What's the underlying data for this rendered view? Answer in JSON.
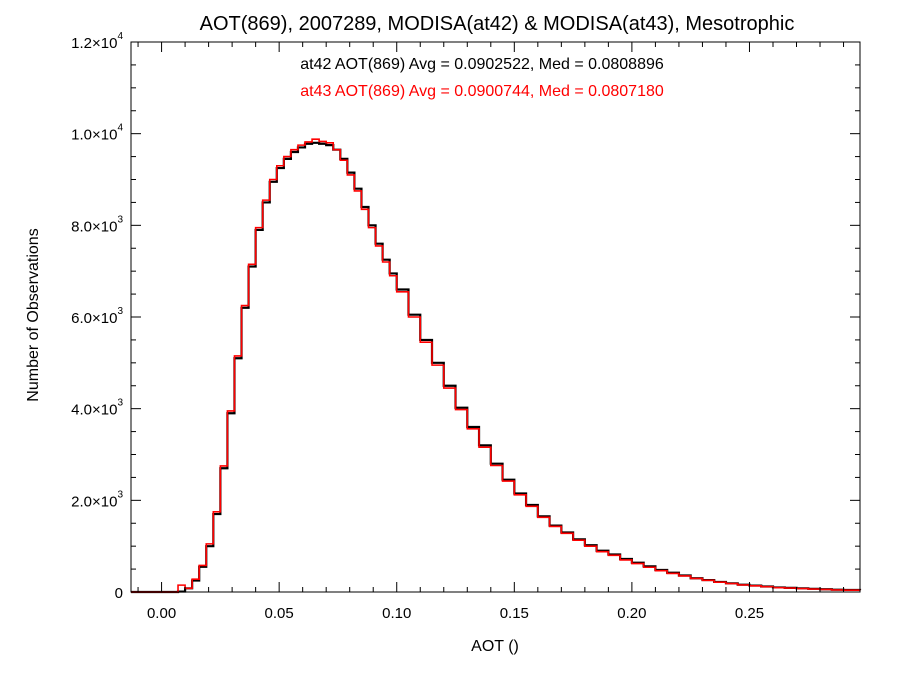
{
  "chart_data": {
    "type": "line",
    "title": "AOT(869), 2007289, MODISA(at42) & MODISA(at43), Mesotrophic",
    "xlabel": "AOT ()",
    "ylabel": "Number of Observations",
    "xlim": [
      -0.013,
      0.297
    ],
    "ylim": [
      0,
      12000
    ],
    "x_ticks": [
      0.0,
      0.05,
      0.1,
      0.15,
      0.2,
      0.25
    ],
    "x_tick_labels": [
      "0.00",
      "0.05",
      "0.10",
      "0.15",
      "0.20",
      "0.25"
    ],
    "y_ticks": [
      {
        "value": 0,
        "mantissa": "0",
        "exp": ""
      },
      {
        "value": 2000,
        "mantissa": "2.0×10",
        "exp": "3"
      },
      {
        "value": 4000,
        "mantissa": "4.0×10",
        "exp": "3"
      },
      {
        "value": 6000,
        "mantissa": "6.0×10",
        "exp": "3"
      },
      {
        "value": 8000,
        "mantissa": "8.0×10",
        "exp": "3"
      },
      {
        "value": 10000,
        "mantissa": "1.0×10",
        "exp": "4"
      },
      {
        "value": 12000,
        "mantissa": "1.2×10",
        "exp": "4"
      }
    ],
    "grid": false,
    "annotations": [
      {
        "text": "at42 AOT(869) Avg = 0.0902522, Med = 0.0808896",
        "color": "#000000"
      },
      {
        "text": "at43 AOT(869) Avg = 0.0900744, Med = 0.0807180",
        "color": "#ff0000"
      }
    ],
    "series": [
      {
        "color": "#000000",
        "x": [
          -0.013,
          0.0,
          0.004,
          0.007,
          0.01,
          0.013,
          0.016,
          0.019,
          0.022,
          0.025,
          0.028,
          0.031,
          0.034,
          0.037,
          0.04,
          0.043,
          0.046,
          0.049,
          0.052,
          0.055,
          0.058,
          0.061,
          0.064,
          0.067,
          0.07,
          0.073,
          0.076,
          0.079,
          0.082,
          0.085,
          0.088,
          0.091,
          0.094,
          0.097,
          0.1,
          0.105,
          0.11,
          0.115,
          0.12,
          0.125,
          0.13,
          0.135,
          0.14,
          0.145,
          0.15,
          0.155,
          0.16,
          0.165,
          0.17,
          0.175,
          0.18,
          0.185,
          0.19,
          0.195,
          0.2,
          0.205,
          0.21,
          0.215,
          0.22,
          0.225,
          0.23,
          0.235,
          0.24,
          0.245,
          0.25,
          0.255,
          0.26,
          0.265,
          0.27,
          0.275,
          0.28,
          0.285,
          0.29,
          0.297
        ],
        "y": [
          0,
          0,
          0,
          10,
          80,
          250,
          550,
          1000,
          1700,
          2700,
          3900,
          5100,
          6200,
          7100,
          7900,
          8500,
          8950,
          9250,
          9450,
          9600,
          9700,
          9780,
          9800,
          9780,
          9750,
          9650,
          9450,
          9150,
          8800,
          8400,
          8000,
          7600,
          7250,
          6950,
          6600,
          6050,
          5500,
          5000,
          4500,
          4020,
          3600,
          3200,
          2800,
          2450,
          2150,
          1900,
          1650,
          1450,
          1300,
          1150,
          1020,
          900,
          820,
          720,
          640,
          560,
          480,
          420,
          360,
          300,
          260,
          220,
          190,
          160,
          140,
          120,
          100,
          90,
          80,
          70,
          60,
          50,
          45,
          40
        ]
      },
      {
        "color": "#ff0000",
        "x": [
          -0.013,
          0.0,
          0.004,
          0.007,
          0.01,
          0.013,
          0.016,
          0.019,
          0.022,
          0.025,
          0.028,
          0.031,
          0.034,
          0.037,
          0.04,
          0.043,
          0.046,
          0.049,
          0.052,
          0.055,
          0.058,
          0.061,
          0.064,
          0.067,
          0.07,
          0.073,
          0.076,
          0.079,
          0.082,
          0.085,
          0.088,
          0.091,
          0.094,
          0.097,
          0.1,
          0.105,
          0.11,
          0.115,
          0.12,
          0.125,
          0.13,
          0.135,
          0.14,
          0.145,
          0.15,
          0.155,
          0.16,
          0.165,
          0.17,
          0.175,
          0.18,
          0.185,
          0.19,
          0.195,
          0.2,
          0.205,
          0.21,
          0.215,
          0.22,
          0.225,
          0.23,
          0.235,
          0.24,
          0.245,
          0.25,
          0.255,
          0.26,
          0.265,
          0.27,
          0.275,
          0.28,
          0.285,
          0.29,
          0.297
        ],
        "y": [
          0,
          0,
          0,
          150,
          80,
          280,
          580,
          1050,
          1750,
          2750,
          3950,
          5150,
          6250,
          7150,
          7950,
          8550,
          9000,
          9300,
          9500,
          9650,
          9750,
          9820,
          9880,
          9830,
          9800,
          9650,
          9420,
          9100,
          8750,
          8350,
          7950,
          7550,
          7200,
          6900,
          6550,
          6000,
          5450,
          4950,
          4450,
          3980,
          3560,
          3160,
          2760,
          2420,
          2120,
          1870,
          1630,
          1430,
          1280,
          1130,
          1000,
          880,
          800,
          700,
          620,
          540,
          465,
          405,
          350,
          295,
          255,
          215,
          185,
          155,
          135,
          115,
          95,
          85,
          75,
          65,
          55,
          45,
          40,
          35
        ]
      }
    ]
  }
}
